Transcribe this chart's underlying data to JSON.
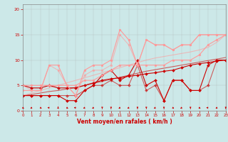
{
  "xlabel": "Vent moyen/en rafales ( km/h )",
  "xlim": [
    0,
    23
  ],
  "ylim": [
    0,
    21
  ],
  "yticks": [
    0,
    5,
    10,
    15,
    20
  ],
  "xticks": [
    0,
    1,
    2,
    3,
    4,
    5,
    6,
    7,
    8,
    9,
    10,
    11,
    12,
    13,
    14,
    15,
    16,
    17,
    18,
    19,
    20,
    21,
    22,
    23
  ],
  "bg_color": "#cce8e8",
  "grid_color": "#aaaaaa",
  "lines": [
    {
      "x": [
        0,
        1,
        2,
        3,
        4,
        5,
        6,
        7,
        8,
        9,
        10,
        11,
        12,
        13,
        14,
        15,
        16,
        17,
        18,
        19,
        20,
        21,
        22,
        23
      ],
      "y": [
        3,
        3.2,
        3.5,
        3.8,
        4,
        4.3,
        4.6,
        5.0,
        5.4,
        5.8,
        6.2,
        6.6,
        7.0,
        7.4,
        7.8,
        8.1,
        8.4,
        8.7,
        9.0,
        9.3,
        9.6,
        9.9,
        10.2,
        10.5
      ],
      "color": "#cc0000",
      "lw": 0.8,
      "marker": null,
      "alpha": 0.6
    },
    {
      "x": [
        0,
        1,
        2,
        3,
        4,
        5,
        6,
        7,
        8,
        9,
        10,
        11,
        12,
        13,
        14,
        15,
        16,
        17,
        18,
        19,
        20,
        21,
        22,
        23
      ],
      "y": [
        3,
        3.5,
        4.0,
        4.5,
        5.0,
        5.5,
        6.0,
        6.5,
        7.0,
        7.5,
        8.0,
        8.5,
        9.0,
        9.5,
        10.0,
        10.4,
        10.7,
        11.0,
        11.3,
        11.6,
        12.0,
        12.5,
        13.5,
        15.0
      ],
      "color": "#ff9999",
      "lw": 0.8,
      "marker": null,
      "alpha": 0.6
    },
    {
      "x": [
        0,
        1,
        2,
        3,
        4,
        5,
        6,
        7,
        8,
        9,
        10,
        11,
        12,
        13,
        14,
        15,
        16,
        17,
        18,
        19,
        20,
        21,
        22,
        23
      ],
      "y": [
        5,
        4.5,
        4.5,
        5.0,
        4.5,
        4.5,
        4.5,
        5.0,
        5.5,
        6.0,
        6.3,
        6.5,
        6.8,
        7.0,
        7.3,
        7.5,
        7.8,
        8.0,
        8.5,
        9.0,
        9.3,
        9.5,
        9.8,
        10.0
      ],
      "color": "#cc0000",
      "lw": 0.8,
      "marker": "D",
      "ms": 2,
      "alpha": 1.0
    },
    {
      "x": [
        0,
        1,
        2,
        3,
        4,
        5,
        6,
        7,
        8,
        9,
        10,
        11,
        12,
        13,
        14,
        15,
        16,
        17,
        18,
        19,
        20,
        21,
        22,
        23
      ],
      "y": [
        3,
        3,
        3,
        3,
        3,
        2,
        2,
        4,
        5,
        7,
        8,
        6,
        7,
        10,
        5,
        6,
        2,
        6,
        6,
        4,
        4,
        9,
        10,
        10
      ],
      "color": "#cc0000",
      "lw": 0.8,
      "marker": "D",
      "ms": 2,
      "alpha": 1.0
    },
    {
      "x": [
        0,
        1,
        2,
        3,
        4,
        5,
        6,
        7,
        8,
        9,
        10,
        11,
        12,
        13,
        14,
        15,
        16,
        17,
        18,
        19,
        20,
        21,
        22,
        23
      ],
      "y": [
        3,
        3,
        3,
        3,
        3,
        3,
        3,
        4,
        5,
        5,
        6,
        5,
        5,
        9,
        4,
        5,
        2,
        6,
        6,
        4,
        4,
        5,
        10,
        10
      ],
      "color": "#cc0000",
      "lw": 0.8,
      "marker": "D",
      "ms": 2,
      "alpha": 0.6
    },
    {
      "x": [
        0,
        1,
        2,
        3,
        4,
        5,
        6,
        7,
        8,
        9,
        10,
        11,
        12,
        13,
        14,
        15,
        16,
        17,
        18,
        19,
        20,
        21,
        22,
        23
      ],
      "y": [
        5,
        5,
        5,
        5,
        5,
        5,
        5,
        6,
        6,
        7,
        8,
        9,
        9,
        9,
        9,
        9,
        9,
        10,
        10,
        10,
        11,
        13,
        14,
        15
      ],
      "color": "#ff9999",
      "lw": 0.8,
      "marker": "o",
      "ms": 2,
      "alpha": 1.0
    },
    {
      "x": [
        0,
        1,
        2,
        3,
        4,
        5,
        6,
        7,
        8,
        9,
        10,
        11,
        12,
        13,
        14,
        15,
        16,
        17,
        18,
        19,
        20,
        21,
        22,
        23
      ],
      "y": [
        4,
        4,
        4,
        9,
        9,
        5,
        3,
        8,
        9,
        9,
        10,
        16,
        14,
        9,
        14,
        13,
        13,
        12,
        13,
        13,
        15,
        15,
        15,
        15
      ],
      "color": "#ff9999",
      "lw": 0.8,
      "marker": "o",
      "ms": 2,
      "alpha": 1.0
    },
    {
      "x": [
        0,
        1,
        2,
        3,
        4,
        5,
        6,
        7,
        8,
        9,
        10,
        11,
        12,
        13,
        14,
        15,
        16,
        17,
        18,
        19,
        20,
        21,
        22,
        23
      ],
      "y": [
        5,
        4,
        4,
        9,
        8,
        5,
        3,
        7,
        8,
        8,
        9,
        15,
        13,
        9,
        14,
        13,
        13,
        12,
        13,
        13,
        15,
        15,
        15,
        15
      ],
      "color": "#ff9999",
      "lw": 0.8,
      "marker": "o",
      "ms": 2,
      "alpha": 0.6
    }
  ],
  "wind_arrows_x": [
    0,
    1,
    2,
    3,
    4,
    5,
    6,
    7,
    8,
    9,
    10,
    11,
    12,
    13,
    14,
    15,
    16,
    17,
    18,
    19,
    20,
    21,
    22,
    23
  ],
  "wind_arrow_dirs": [
    135,
    225,
    135,
    270,
    0,
    135,
    270,
    225,
    225,
    180,
    180,
    225,
    225,
    180,
    180,
    225,
    180,
    135,
    225,
    180,
    135,
    270,
    225,
    180
  ]
}
